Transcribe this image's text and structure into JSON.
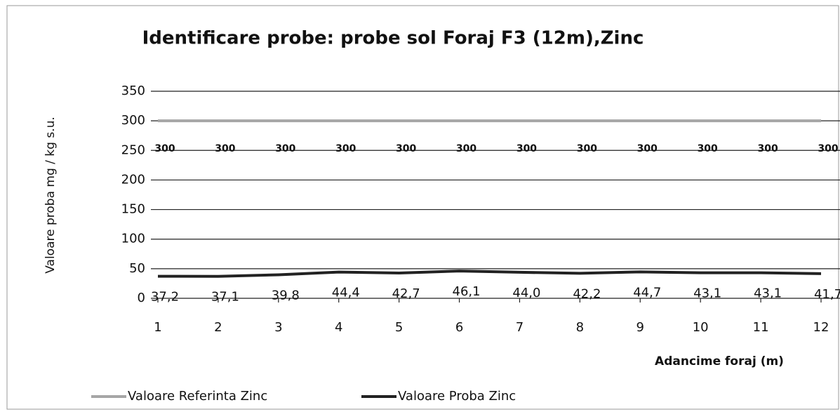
{
  "chart_data": {
    "type": "line",
    "title": "Identificare probe: probe sol Foraj F3 (12m),Zinc",
    "y_label": "Valoare proba mg / kg s.u.",
    "x_label": "Adancime foraj (m)",
    "categories": [
      "1",
      "2",
      "3",
      "4",
      "5",
      "6",
      "7",
      "8",
      "9",
      "10",
      "11",
      "12"
    ],
    "series": [
      {
        "name": "Valoare Referinta Zinc",
        "color": "#a6a6a6",
        "values": [
          300,
          300,
          300,
          300,
          300,
          300,
          300,
          300,
          300,
          300,
          300,
          300
        ]
      },
      {
        "name": "Valoare Proba Zinc",
        "color": "#222222",
        "values": [
          37.2,
          37.1,
          39.8,
          44.4,
          42.7,
          46.1,
          44.0,
          42.2,
          44.7,
          43.1,
          43.1,
          41.7
        ],
        "value_labels": [
          "37,2",
          "37,1",
          "39,8",
          "44,4",
          "42,7",
          "46,1",
          "44,0",
          "42,2",
          "44,7",
          "43,1",
          "43,1",
          "41,7"
        ]
      }
    ],
    "ylim": [
      0,
      350
    ],
    "yticks": [
      0,
      50,
      100,
      150,
      200,
      250,
      300,
      350
    ],
    "grid": true,
    "legend": "bottom"
  }
}
